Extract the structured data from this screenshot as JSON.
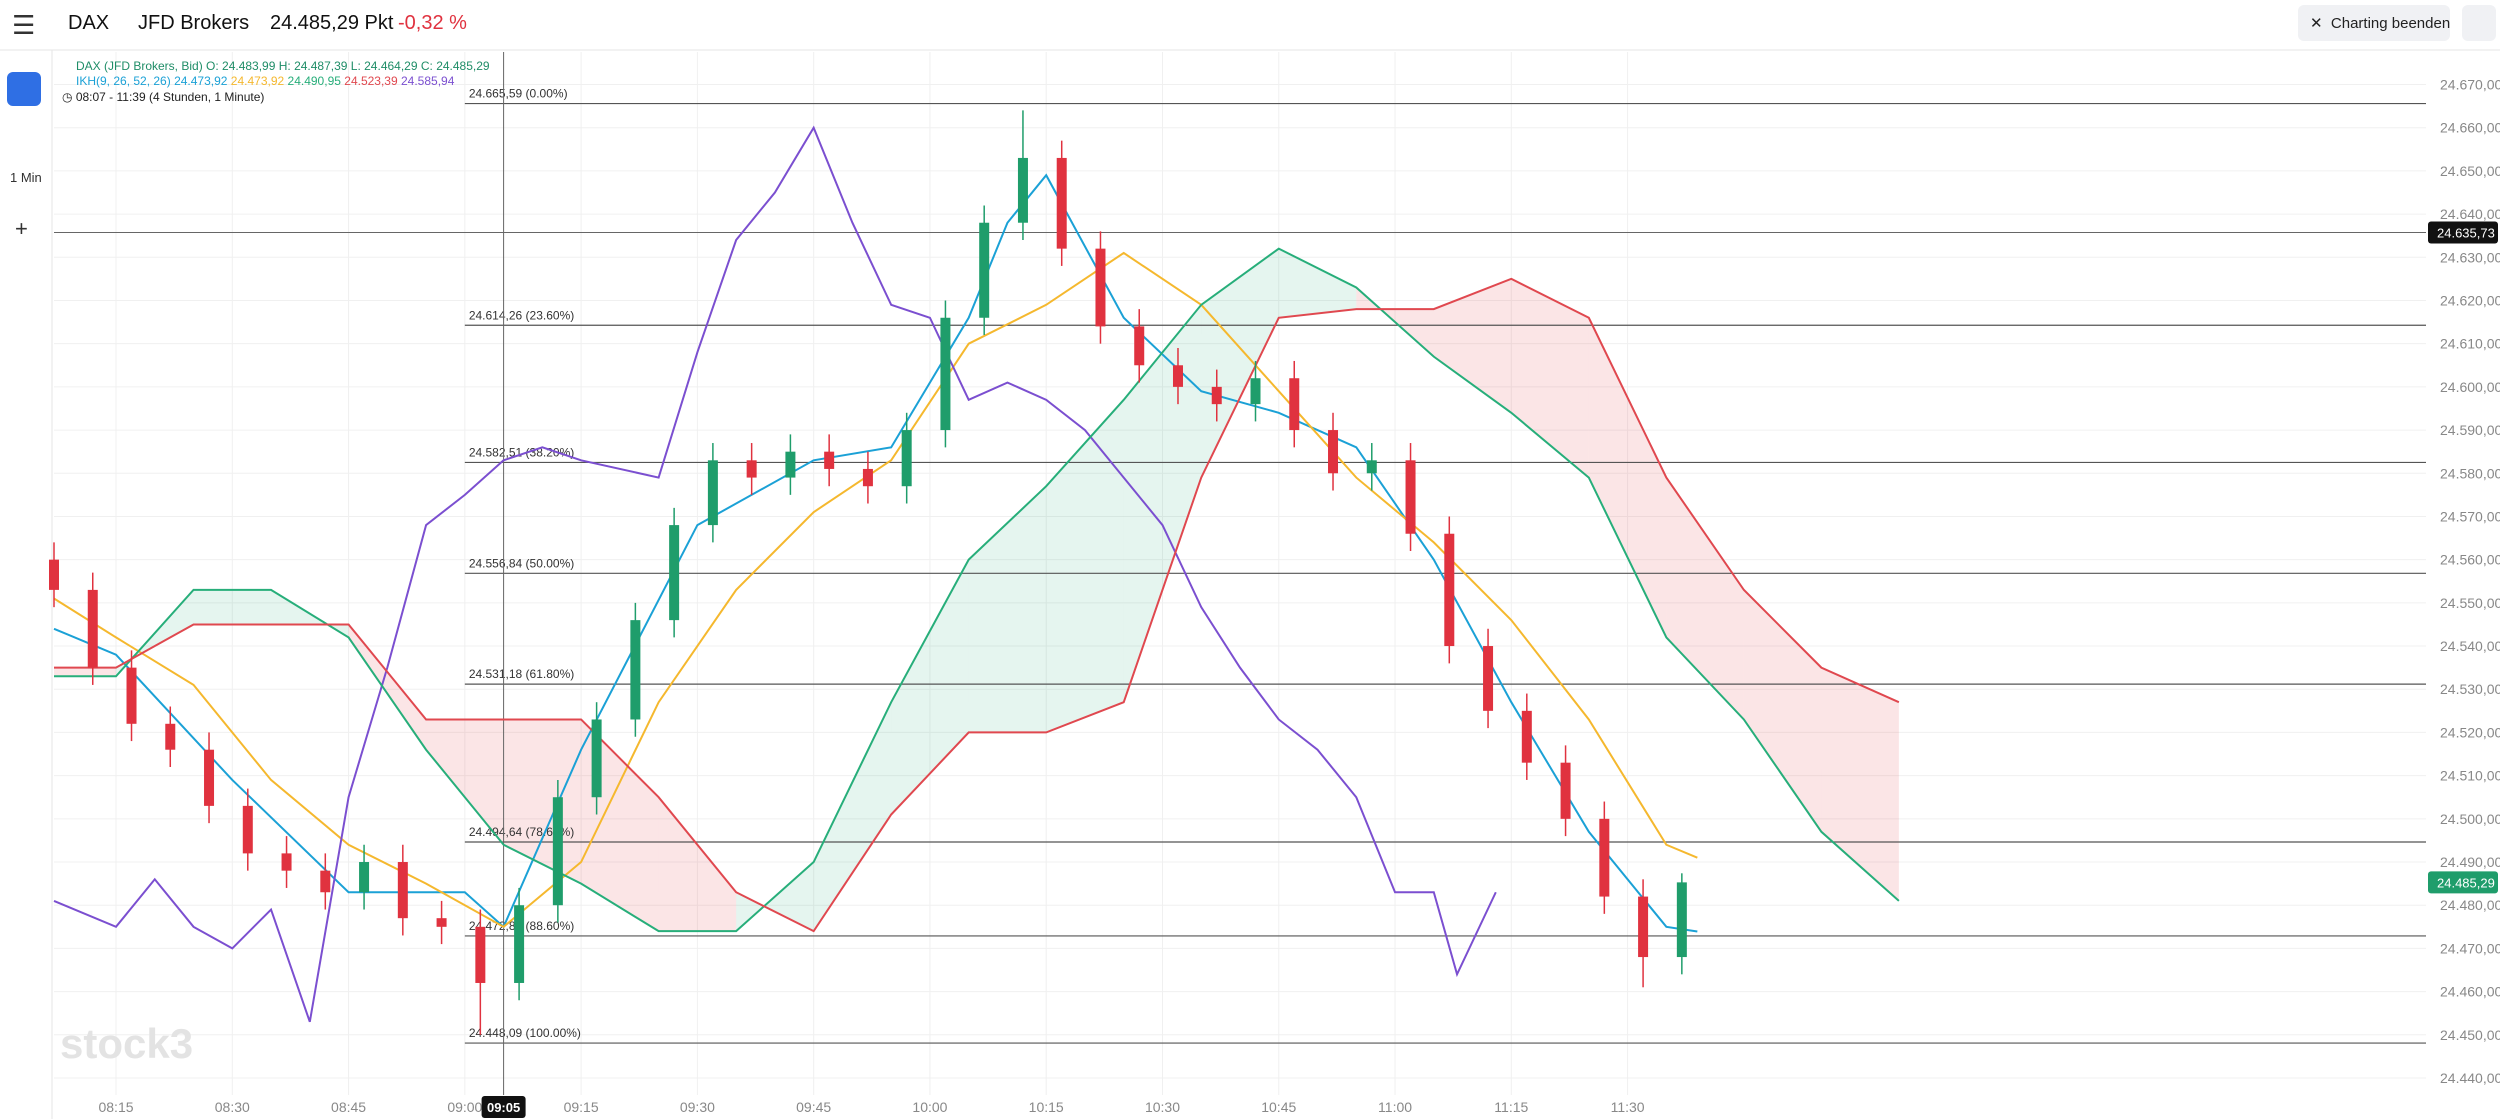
{
  "header": {
    "symbol": "DAX",
    "broker": "JFD Brokers",
    "price": "24.485,29 Pkt",
    "change": "-0,32 %",
    "exit": "Charting beenden"
  },
  "sidebar": {
    "interval": "1 Min"
  },
  "legend": {
    "ohlc": "DAX (JFD Brokers, Bid) O: 24.483,99  H: 24.487,39  L: 24.464,29  C: 24.485,29",
    "ikh": "IKH(9, 26, 52, 26)",
    "ikh_values": [
      "24.473,92",
      "24.473,92",
      "24.490,95",
      "24.523,39",
      "24.585,94"
    ],
    "range": "08:07 - 11:39   (4 Stunden, 1 Minute)"
  },
  "watermark": "stock3",
  "chart_data": {
    "type": "candlestick",
    "xlim": [
      "08:07",
      "13:13"
    ],
    "ylim": [
      24440,
      24670
    ],
    "xticks": [
      "08:15",
      "08:30",
      "08:45",
      "09:00",
      "09:15",
      "09:30",
      "09:45",
      "10:00",
      "10:15",
      "10:30",
      "10:45",
      "11:00",
      "11:15",
      "11:30"
    ],
    "yticks": [
      {
        "value": 24440,
        "label": "24.440,00"
      },
      {
        "value": 24450,
        "label": "24.450,00"
      },
      {
        "value": 24460,
        "label": "24.460,00"
      },
      {
        "value": 24470,
        "label": "24.470,00"
      },
      {
        "value": 24480,
        "label": "24.480,00"
      },
      {
        "value": 24490,
        "label": "24.490,00"
      },
      {
        "value": 24500,
        "label": "24.500,00"
      },
      {
        "value": 24510,
        "label": "24.510,00"
      },
      {
        "value": 24520,
        "label": "24.520,00"
      },
      {
        "value": 24530,
        "label": "24.530,00"
      },
      {
        "value": 24540,
        "label": "24.540,00"
      },
      {
        "value": 24550,
        "label": "24.550,00"
      },
      {
        "value": 24560,
        "label": "24.560,00"
      },
      {
        "value": 24570,
        "label": "24.570,00"
      },
      {
        "value": 24580,
        "label": "24.580,00"
      },
      {
        "value": 24590,
        "label": "24.590,00"
      },
      {
        "value": 24600,
        "label": "24.600,00"
      },
      {
        "value": 24610,
        "label": "24.610,00"
      },
      {
        "value": 24620,
        "label": "24.620,00"
      },
      {
        "value": 24630,
        "label": "24.630,00"
      },
      {
        "value": 24640,
        "label": "24.640,00"
      },
      {
        "value": 24650,
        "label": "24.650,00"
      },
      {
        "value": 24660,
        "label": "24.660,00"
      },
      {
        "value": 24670,
        "label": "24.670,00"
      }
    ],
    "grid": true,
    "up_color": "#1f9d6b",
    "down_color": "#e0323f",
    "candles": {
      "x": [
        "08:07",
        "08:12",
        "08:17",
        "08:22",
        "08:27",
        "08:32",
        "08:37",
        "08:42",
        "08:47",
        "08:52",
        "08:57",
        "09:02",
        "09:07",
        "09:12",
        "09:17",
        "09:22",
        "09:27",
        "09:32",
        "09:37",
        "09:42",
        "09:47",
        "09:52",
        "09:57",
        "10:02",
        "10:07",
        "10:12",
        "10:17",
        "10:22",
        "10:27",
        "10:32",
        "10:37",
        "10:42",
        "10:47",
        "10:52",
        "10:57",
        "11:02",
        "11:07",
        "11:12",
        "11:17",
        "11:22",
        "11:27",
        "11:32",
        "11:37"
      ],
      "open": [
        24560,
        24553,
        24535,
        24522,
        24516,
        24503,
        24492,
        24488,
        24483,
        24490,
        24477,
        24475,
        24462,
        24480,
        24505,
        24523,
        24546,
        24568,
        24583,
        24579,
        24585,
        24581,
        24577,
        24590,
        24616,
        24638,
        24653,
        24632,
        24614,
        24605,
        24600,
        24596,
        24602,
        24590,
        24580,
        24583,
        24566,
        24540,
        24525,
        24513,
        24500,
        24482,
        24468
      ],
      "high": [
        24564,
        24557,
        24539,
        24526,
        24520,
        24507,
        24496,
        24492,
        24494,
        24494,
        24481,
        24479,
        24484,
        24509,
        24527,
        24550,
        24572,
        24587,
        24587,
        24589,
        24589,
        24585,
        24594,
        24620,
        24642,
        24664,
        24657,
        24636,
        24618,
        24609,
        24604,
        24606,
        24606,
        24594,
        24587,
        24587,
        24570,
        24544,
        24529,
        24517,
        24504,
        24486,
        24487.39
      ],
      "low": [
        24549,
        24531,
        24518,
        24512,
        24499,
        24488,
        24484,
        24479,
        24479,
        24473,
        24471,
        24450,
        24458,
        24476,
        24501,
        24519,
        24542,
        24564,
        24575,
        24575,
        24577,
        24573,
        24573,
        24586,
        24612,
        24634,
        24628,
        24610,
        24601,
        24596,
        24592,
        24592,
        24586,
        24576,
        24576,
        24562,
        24536,
        24521,
        24509,
        24496,
        24478,
        24461,
        24464
      ],
      "close": [
        24553,
        24535,
        24522,
        24516,
        24503,
        24492,
        24488,
        24483,
        24490,
        24477,
        24475,
        24462,
        24480,
        24505,
        24523,
        24546,
        24568,
        24583,
        24579,
        24585,
        24581,
        24577,
        24590,
        24616,
        24638,
        24653,
        24632,
        24614,
        24605,
        24600,
        24596,
        24602,
        24590,
        24580,
        24583,
        24566,
        24540,
        24525,
        24513,
        24500,
        24482,
        24468,
        24485.29
      ]
    },
    "series": [
      {
        "name": "Tenkan",
        "color": "#1ba1d6",
        "x": [
          "08:07",
          "08:15",
          "08:30",
          "08:45",
          "09:00",
          "09:05",
          "09:15",
          "09:30",
          "09:45",
          "09:55",
          "10:05",
          "10:10",
          "10:15",
          "10:25",
          "10:35",
          "10:45",
          "10:55",
          "11:05",
          "11:15",
          "11:25",
          "11:35",
          "11:39"
        ],
        "values": [
          24544,
          24538,
          24509,
          24483,
          24483,
          24475,
          24516,
          24568,
          24583,
          24586,
          24616,
          24638,
          24649,
          24616,
          24599,
          24594,
          24586,
          24560,
          24527,
          24497,
          24475,
          24473.92
        ]
      },
      {
        "name": "Kijun",
        "color": "#f5b82e",
        "x": [
          "08:07",
          "08:15",
          "08:25",
          "08:35",
          "08:45",
          "08:55",
          "09:05",
          "09:15",
          "09:25",
          "09:35",
          "09:45",
          "09:55",
          "10:05",
          "10:15",
          "10:25",
          "10:35",
          "10:45",
          "10:55",
          "11:05",
          "11:15",
          "11:25",
          "11:35",
          "11:39"
        ],
        "values": [
          24551,
          24542,
          24531,
          24509,
          24494,
          24485,
          24475,
          24490,
          24527,
          24553,
          24571,
          24583,
          24610,
          24619,
          24631,
          24619,
          24599,
          24579,
          24564,
          24546,
          24523,
          24494,
          24491
        ]
      },
      {
        "name": "Chikou",
        "color": "#7b4fd0",
        "x": [
          "08:07",
          "08:15",
          "08:20",
          "08:25",
          "08:30",
          "08:35",
          "08:40",
          "08:45",
          "08:50",
          "08:55",
          "09:00",
          "09:05",
          "09:10",
          "09:15",
          "09:25",
          "09:30",
          "09:35",
          "09:40",
          "09:45",
          "09:50",
          "09:55",
          "10:00",
          "10:05",
          "10:10",
          "10:15",
          "10:20",
          "10:25",
          "10:30",
          "10:35",
          "10:40",
          "10:45",
          "10:50",
          "10:55",
          "11:00",
          "11:05",
          "11:08",
          "11:13"
        ],
        "values": [
          24481,
          24475,
          24486,
          24475,
          24470,
          24479,
          24453,
          24505,
          24535,
          24568,
          24575,
          24583,
          24586,
          24583,
          24579,
          24608,
          24634,
          24645,
          24660,
          24638,
          24619,
          24616,
          24597,
          24601,
          24597,
          24590,
          24579,
          24568,
          24549,
          24535,
          24523,
          24516,
          24505,
          24483,
          24483,
          24464,
          24483
        ]
      },
      {
        "name": "Senkou A",
        "color": "#27ae7a",
        "x": [
          "08:07",
          "08:15",
          "08:25",
          "08:35",
          "08:45",
          "08:55",
          "09:05",
          "09:15",
          "09:25",
          "09:35",
          "09:45",
          "09:55",
          "10:05",
          "10:15",
          "10:25",
          "10:35",
          "10:45",
          "10:55",
          "11:05",
          "11:15",
          "11:25",
          "11:35",
          "11:45",
          "11:55",
          "12:05"
        ],
        "values": [
          24533,
          24533,
          24553,
          24553,
          24542,
          24516,
          24494,
          24485,
          24474,
          24474,
          24490,
          24527,
          24560,
          24577,
          24597,
          24619,
          24632,
          24623,
          24607,
          24594,
          24579,
          24542,
          24523,
          24497,
          24481
        ]
      },
      {
        "name": "Senkou B",
        "color": "#e0484f",
        "x": [
          "08:07",
          "08:15",
          "08:25",
          "08:35",
          "08:45",
          "08:55",
          "09:05",
          "09:15",
          "09:25",
          "09:35",
          "09:45",
          "09:55",
          "10:05",
          "10:15",
          "10:25",
          "10:35",
          "10:45",
          "10:55",
          "11:05",
          "11:15",
          "11:25",
          "11:35",
          "11:45",
          "11:55",
          "12:05"
        ],
        "values": [
          24535,
          24535,
          24545,
          24545,
          24545,
          24523,
          24523,
          24523,
          24505,
          24483,
          24474,
          24501,
          24520,
          24520,
          24527,
          24579,
          24616,
          24618,
          24618,
          24625,
          24616,
          24579,
          24553,
          24535,
          24527
        ]
      }
    ],
    "fib_start": "09:00",
    "fib_levels": [
      {
        "value": 24665.59,
        "label": "24.665,59 (0.00%)"
      },
      {
        "value": 24614.26,
        "label": "24.614,26 (23.60%)"
      },
      {
        "value": 24582.51,
        "label": "24.582,51 (38.20%)"
      },
      {
        "value": 24556.84,
        "label": "24.556,84 (50.00%)"
      },
      {
        "value": 24531.18,
        "label": "24.531,18 (61.80%)"
      },
      {
        "value": 24494.64,
        "label": "24.494,64 (78.60%)"
      },
      {
        "value": 24472.89,
        "label": "24.472,89 (88.60%)"
      },
      {
        "value": 24448.09,
        "label": "24.448,09 (100.00%)"
      }
    ],
    "crosshair": {
      "x": "09:05",
      "y": {
        "value": 24635.73,
        "label": "24.635,73"
      }
    },
    "last_price": {
      "value": 24485.29,
      "label": "24.485,29"
    }
  }
}
